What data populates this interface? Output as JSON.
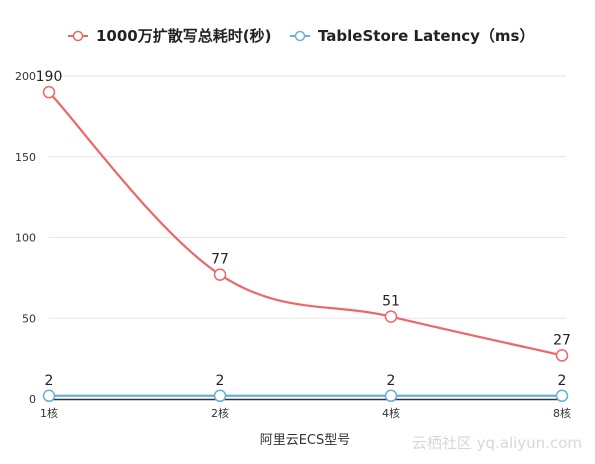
{
  "chart_data": {
    "type": "line",
    "categories": [
      "1核",
      "2核",
      "4核",
      "8核"
    ],
    "series": [
      {
        "name": "1000万扩散写总耗时(秒)",
        "values": [
          190,
          77,
          51,
          27
        ],
        "color": "#ee6666"
      },
      {
        "name": "TableStore Latency（ms）",
        "values": [
          2,
          2,
          2,
          2
        ],
        "color": "#6aaed6"
      }
    ],
    "xlabel": "阿里云ECS型号",
    "ylabel": "",
    "ylim": [
      0,
      200
    ],
    "yticks": [
      0,
      50,
      100,
      150,
      200
    ],
    "grid": true,
    "legend": "top-center"
  },
  "watermark": "云栖社区 yq.aliyun.com",
  "colors": {
    "grid": "#e6e6e6",
    "axis": "#333333"
  }
}
